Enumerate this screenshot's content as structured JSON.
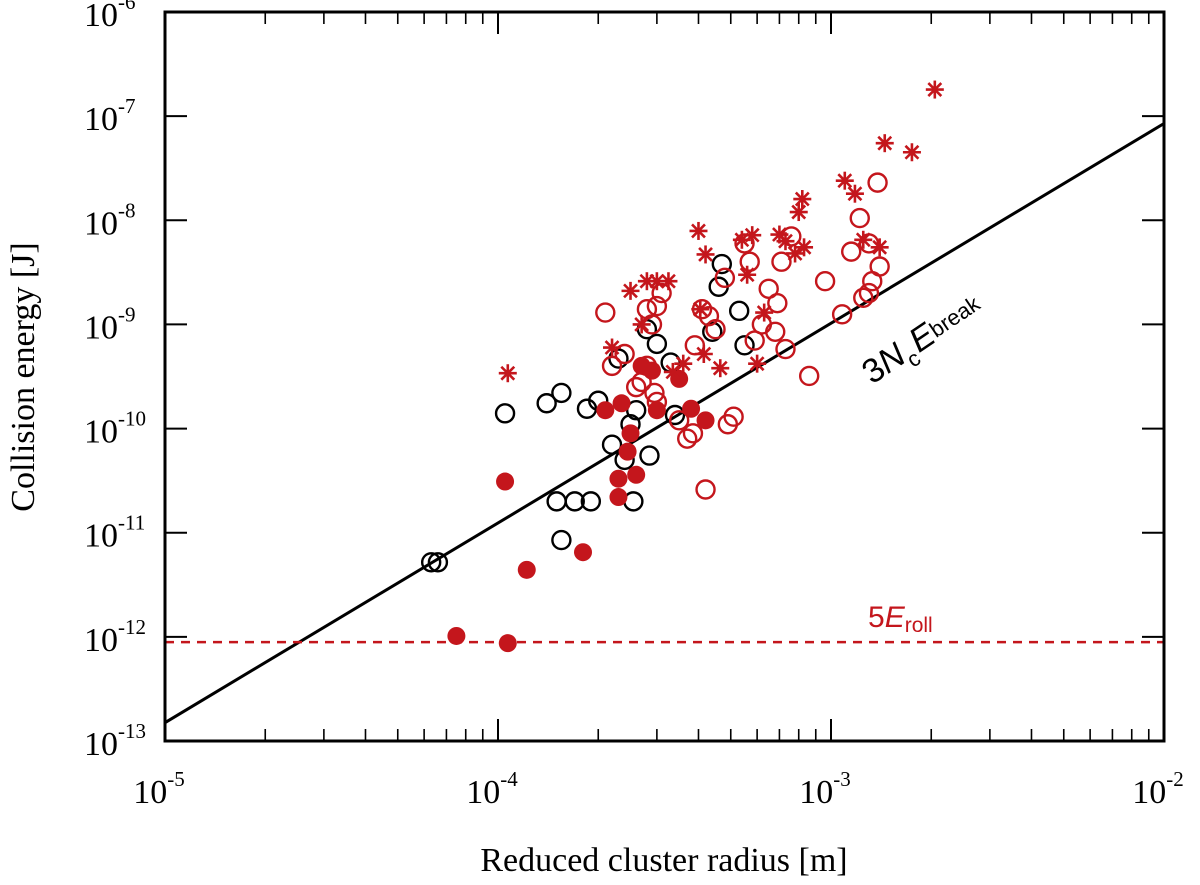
{
  "chart_data": {
    "type": "scatter",
    "title": "",
    "xlabel": "Reduced cluster radius [m]",
    "ylabel": "Collision energy [J]",
    "xscale": "log",
    "yscale": "log",
    "xlim": [
      1e-05,
      0.01
    ],
    "ylim": [
      1e-13,
      1e-06
    ],
    "x_ticks": [
      {
        "base": "10",
        "exp": "-5",
        "value": 1e-05
      },
      {
        "base": "10",
        "exp": "-4",
        "value": 0.0001
      },
      {
        "base": "10",
        "exp": "-3",
        "value": 0.001
      },
      {
        "base": "10",
        "exp": "-2",
        "value": 0.01
      }
    ],
    "y_ticks": [
      {
        "base": "10",
        "exp": "-13",
        "value": 1e-13
      },
      {
        "base": "10",
        "exp": "-12",
        "value": 1e-12
      },
      {
        "base": "10",
        "exp": "-11",
        "value": 1e-11
      },
      {
        "base": "10",
        "exp": "-10",
        "value": 1e-10
      },
      {
        "base": "10",
        "exp": "-9",
        "value": 1e-09
      },
      {
        "base": "10",
        "exp": "-8",
        "value": 1e-08
      },
      {
        "base": "10",
        "exp": "-7",
        "value": 1e-07
      },
      {
        "base": "10",
        "exp": "-6",
        "value": 1e-06
      }
    ],
    "colors": {
      "black": "#000000",
      "red": "#c4161c"
    },
    "lines": [
      {
        "name": "3N_c E_break",
        "style": "solid",
        "color": "#000000",
        "points": [
          [
            1e-05,
            1.5e-13
          ],
          [
            0.01,
            8.5e-08
          ]
        ],
        "label": {
          "prefix": "3",
          "n": "N",
          "n_sub": "c",
          "e": "E",
          "e_sub": "break"
        }
      },
      {
        "name": "5E_roll",
        "style": "dashed",
        "color": "#c4161c",
        "points": [
          [
            1e-05,
            8.9e-13
          ],
          [
            0.01,
            8.9e-13
          ]
        ],
        "label": {
          "prefix": "5",
          "e": "E",
          "e_sub": "roll"
        }
      }
    ],
    "series": [
      {
        "name": "black open circles",
        "marker": "open-circle",
        "color": "#000000",
        "points": [
          [
            6.3e-05,
            5.2e-12
          ],
          [
            6.6e-05,
            5.2e-12
          ],
          [
            0.000105,
            1.4e-10
          ],
          [
            0.00014,
            1.75e-10
          ],
          [
            0.000155,
            2.2e-10
          ],
          [
            0.000185,
            1.55e-10
          ],
          [
            0.0002,
            1.85e-10
          ],
          [
            0.00015,
            2e-11
          ],
          [
            0.00017,
            2e-11
          ],
          [
            0.00019,
            2e-11
          ],
          [
            0.000155,
            8.5e-12
          ],
          [
            0.00022,
            7e-11
          ],
          [
            0.00024,
            5e-11
          ],
          [
            0.00025,
            1.1e-10
          ],
          [
            0.00026,
            1.5e-10
          ],
          [
            0.000255,
            2e-11
          ],
          [
            0.000285,
            5.5e-11
          ],
          [
            0.00023,
            4.7e-10
          ],
          [
            0.00028,
            9e-10
          ],
          [
            0.0003,
            6.5e-10
          ],
          [
            0.00033,
            4.3e-10
          ],
          [
            0.00034,
            1.35e-10
          ],
          [
            0.00044,
            8.5e-10
          ],
          [
            0.00046,
            2.3e-09
          ],
          [
            0.00047,
            3.8e-09
          ],
          [
            0.00053,
            1.35e-09
          ],
          [
            0.00055,
            6.3e-10
          ]
        ]
      },
      {
        "name": "red filled circles",
        "marker": "filled-circle",
        "color": "#c4161c",
        "points": [
          [
            7.5e-05,
            1.02e-12
          ],
          [
            0.000107,
            8.7e-13
          ],
          [
            0.000105,
            3.1e-11
          ],
          [
            0.000122,
            4.4e-12
          ],
          [
            0.00018,
            6.5e-12
          ],
          [
            0.00021,
            1.5e-10
          ],
          [
            0.00023,
            2.2e-11
          ],
          [
            0.00023,
            3.3e-11
          ],
          [
            0.000235,
            1.75e-10
          ],
          [
            0.000245,
            6e-11
          ],
          [
            0.00026,
            3.6e-11
          ],
          [
            0.00025,
            9e-11
          ],
          [
            0.00027,
            4e-10
          ],
          [
            0.00029,
            3.6e-10
          ],
          [
            0.0003,
            1.5e-10
          ],
          [
            0.00035,
            3e-10
          ],
          [
            0.00038,
            1.55e-10
          ],
          [
            0.00042,
            1.2e-10
          ]
        ]
      },
      {
        "name": "red open circles",
        "marker": "open-circle",
        "color": "#c4161c",
        "points": [
          [
            0.00021,
            1.3e-09
          ],
          [
            0.00022,
            4e-10
          ],
          [
            0.00024,
            5.2e-10
          ],
          [
            0.00026,
            2.5e-10
          ],
          [
            0.00027,
            2.8e-10
          ],
          [
            0.00028,
            1.4e-09
          ],
          [
            0.00029,
            1e-09
          ],
          [
            0.0003,
            1.5e-09
          ],
          [
            0.00031,
            2e-09
          ],
          [
            0.00028,
            4e-10
          ],
          [
            0.000295,
            2.2e-10
          ],
          [
            0.0003,
            1.8e-10
          ],
          [
            0.00035,
            1.2e-10
          ],
          [
            0.00037,
            8e-11
          ],
          [
            0.000385,
            9e-11
          ],
          [
            0.00039,
            6.3e-10
          ],
          [
            0.00041,
            1.4e-09
          ],
          [
            0.00043,
            1.2e-09
          ],
          [
            0.00045,
            9e-10
          ],
          [
            0.00048,
            2.8e-09
          ],
          [
            0.00042,
            2.6e-11
          ],
          [
            0.00049,
            1.1e-10
          ],
          [
            0.00051,
            1.3e-10
          ],
          [
            0.00055,
            6e-09
          ],
          [
            0.00057,
            4e-09
          ],
          [
            0.00059,
            7e-10
          ],
          [
            0.00062,
            1e-09
          ],
          [
            0.00065,
            2.2e-09
          ],
          [
            0.00069,
            1.6e-09
          ],
          [
            0.00068,
            8.5e-10
          ],
          [
            0.00073,
            5.8e-10
          ],
          [
            0.00071,
            4e-09
          ],
          [
            0.00076,
            7e-09
          ],
          [
            0.00086,
            3.2e-10
          ],
          [
            0.00096,
            2.6e-09
          ],
          [
            0.00108,
            1.25e-09
          ],
          [
            0.00115,
            5e-09
          ],
          [
            0.00122,
            1.05e-08
          ],
          [
            0.00125,
            1.8e-09
          ],
          [
            0.0013,
            2e-09
          ],
          [
            0.00133,
            2.6e-09
          ],
          [
            0.00138,
            2.3e-08
          ],
          [
            0.0014,
            3.6e-09
          ],
          [
            0.0013,
            6e-09
          ]
        ]
      },
      {
        "name": "red asterisks",
        "marker": "asterisk",
        "color": "#c4161c",
        "points": [
          [
            0.000107,
            3.4e-10
          ],
          [
            0.00022,
            6e-10
          ],
          [
            0.00025,
            2.1e-09
          ],
          [
            0.00027,
            1e-09
          ],
          [
            0.00028,
            2.6e-09
          ],
          [
            0.0003,
            2.6e-09
          ],
          [
            0.000325,
            2.6e-09
          ],
          [
            0.000335,
            3.5e-10
          ],
          [
            0.00036,
            4.2e-10
          ],
          [
            0.0004,
            7.9e-09
          ],
          [
            0.000405,
            1.4e-09
          ],
          [
            0.000415,
            5.2e-10
          ],
          [
            0.00042,
            4.7e-09
          ],
          [
            0.000465,
            3.8e-10
          ],
          [
            0.00054,
            6.5e-09
          ],
          [
            0.00056,
            3e-09
          ],
          [
            0.00058,
            7.2e-09
          ],
          [
            0.0006,
            4.2e-10
          ],
          [
            0.00063,
            1.3e-09
          ],
          [
            0.0007,
            7.3e-09
          ],
          [
            0.00073,
            6.3e-09
          ],
          [
            0.00078,
            4.8e-09
          ],
          [
            0.0008,
            1.2e-08
          ],
          [
            0.00082,
            1.6e-08
          ],
          [
            0.00083,
            5.5e-09
          ],
          [
            0.0011,
            2.4e-08
          ],
          [
            0.00118,
            1.8e-08
          ],
          [
            0.00125,
            6.5e-09
          ],
          [
            0.0014,
            5.5e-09
          ],
          [
            0.00145,
            5.5e-08
          ],
          [
            0.00175,
            4.5e-08
          ],
          [
            0.00205,
            1.8e-07
          ]
        ]
      }
    ]
  }
}
